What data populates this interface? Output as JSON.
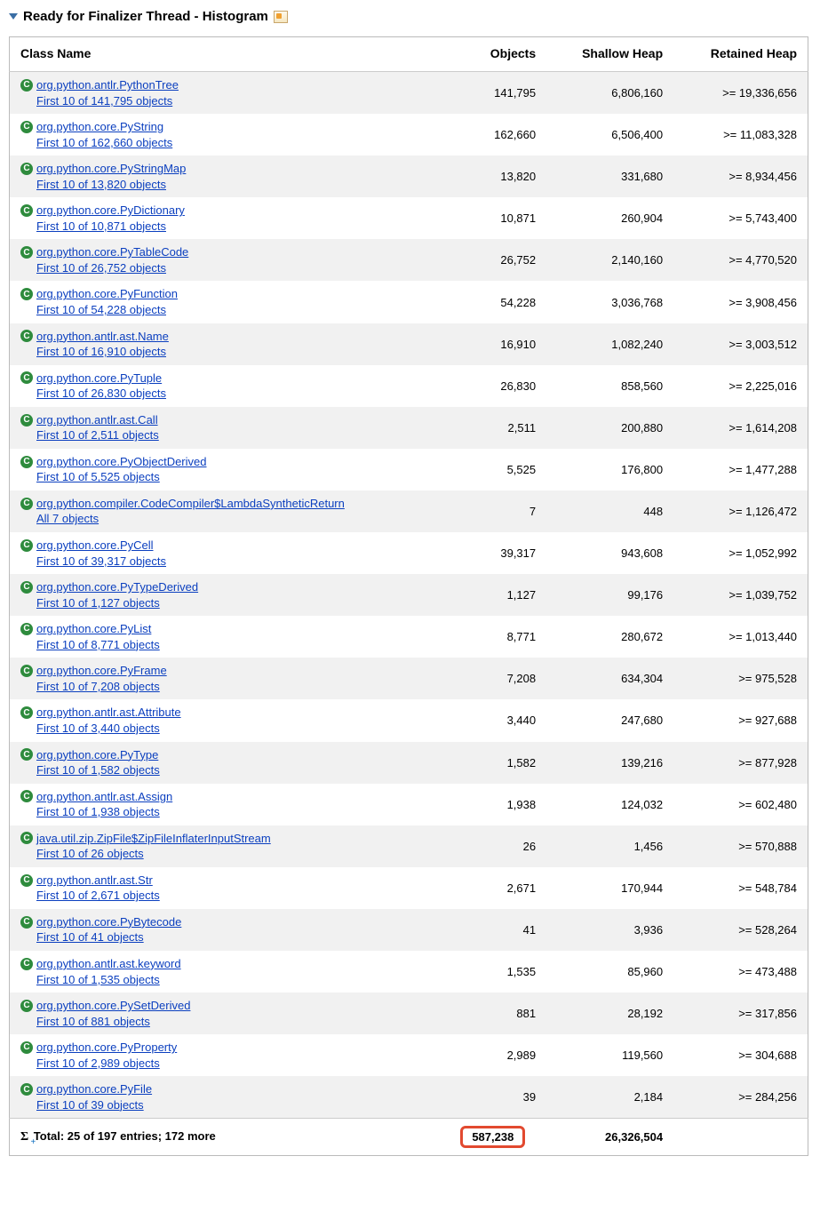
{
  "header": {
    "title": "Ready for Finalizer Thread - Histogram"
  },
  "columns": {
    "class": "Class Name",
    "objects": "Objects",
    "shallow": "Shallow Heap",
    "retained": "Retained Heap"
  },
  "icon_letter": "C",
  "rows": [
    {
      "class": "org.python.antlr.PythonTree",
      "sub": "First 10 of 141,795 objects",
      "objects": "141,795",
      "shallow": "6,806,160",
      "retained": ">= 19,336,656"
    },
    {
      "class": "org.python.core.PyString",
      "sub": "First 10 of 162,660 objects",
      "objects": "162,660",
      "shallow": "6,506,400",
      "retained": ">= 11,083,328"
    },
    {
      "class": "org.python.core.PyStringMap",
      "sub": "First 10 of 13,820 objects",
      "objects": "13,820",
      "shallow": "331,680",
      "retained": ">= 8,934,456"
    },
    {
      "class": "org.python.core.PyDictionary",
      "sub": "First 10 of 10,871 objects",
      "objects": "10,871",
      "shallow": "260,904",
      "retained": ">= 5,743,400"
    },
    {
      "class": "org.python.core.PyTableCode",
      "sub": "First 10 of 26,752 objects",
      "objects": "26,752",
      "shallow": "2,140,160",
      "retained": ">= 4,770,520"
    },
    {
      "class": "org.python.core.PyFunction",
      "sub": "First 10 of 54,228 objects",
      "objects": "54,228",
      "shallow": "3,036,768",
      "retained": ">= 3,908,456"
    },
    {
      "class": "org.python.antlr.ast.Name",
      "sub": "First 10 of 16,910 objects",
      "objects": "16,910",
      "shallow": "1,082,240",
      "retained": ">= 3,003,512"
    },
    {
      "class": "org.python.core.PyTuple",
      "sub": "First 10 of 26,830 objects",
      "objects": "26,830",
      "shallow": "858,560",
      "retained": ">= 2,225,016"
    },
    {
      "class": "org.python.antlr.ast.Call",
      "sub": "First 10 of 2,511 objects",
      "objects": "2,511",
      "shallow": "200,880",
      "retained": ">= 1,614,208"
    },
    {
      "class": "org.python.core.PyObjectDerived",
      "sub": "First 10 of 5,525 objects",
      "objects": "5,525",
      "shallow": "176,800",
      "retained": ">= 1,477,288"
    },
    {
      "class": "org.python.compiler.CodeCompiler$LambdaSyntheticReturn",
      "sub": "All 7 objects",
      "objects": "7",
      "shallow": "448",
      "retained": ">= 1,126,472"
    },
    {
      "class": "org.python.core.PyCell",
      "sub": "First 10 of 39,317 objects",
      "objects": "39,317",
      "shallow": "943,608",
      "retained": ">= 1,052,992"
    },
    {
      "class": "org.python.core.PyTypeDerived",
      "sub": "First 10 of 1,127 objects",
      "objects": "1,127",
      "shallow": "99,176",
      "retained": ">= 1,039,752"
    },
    {
      "class": "org.python.core.PyList",
      "sub": "First 10 of 8,771 objects",
      "objects": "8,771",
      "shallow": "280,672",
      "retained": ">= 1,013,440"
    },
    {
      "class": "org.python.core.PyFrame",
      "sub": "First 10 of 7,208 objects",
      "objects": "7,208",
      "shallow": "634,304",
      "retained": ">= 975,528"
    },
    {
      "class": "org.python.antlr.ast.Attribute",
      "sub": "First 10 of 3,440 objects",
      "objects": "3,440",
      "shallow": "247,680",
      "retained": ">= 927,688"
    },
    {
      "class": "org.python.core.PyType",
      "sub": "First 10 of 1,582 objects",
      "objects": "1,582",
      "shallow": "139,216",
      "retained": ">= 877,928"
    },
    {
      "class": "org.python.antlr.ast.Assign",
      "sub": "First 10 of 1,938 objects",
      "objects": "1,938",
      "shallow": "124,032",
      "retained": ">= 602,480"
    },
    {
      "class": "java.util.zip.ZipFile$ZipFileInflaterInputStream",
      "sub": "First 10 of 26 objects",
      "objects": "26",
      "shallow": "1,456",
      "retained": ">= 570,888"
    },
    {
      "class": "org.python.antlr.ast.Str",
      "sub": "First 10 of 2,671 objects",
      "objects": "2,671",
      "shallow": "170,944",
      "retained": ">= 548,784"
    },
    {
      "class": "org.python.core.PyBytecode",
      "sub": "First 10 of 41 objects",
      "objects": "41",
      "shallow": "3,936",
      "retained": ">= 528,264"
    },
    {
      "class": "org.python.antlr.ast.keyword",
      "sub": "First 10 of 1,535 objects",
      "objects": "1,535",
      "shallow": "85,960",
      "retained": ">= 473,488"
    },
    {
      "class": "org.python.core.PySetDerived",
      "sub": "First 10 of 881 objects",
      "objects": "881",
      "shallow": "28,192",
      "retained": ">= 317,856"
    },
    {
      "class": "org.python.core.PyProperty",
      "sub": "First 10 of 2,989 objects",
      "objects": "2,989",
      "shallow": "119,560",
      "retained": ">= 304,688"
    },
    {
      "class": "org.python.core.PyFile",
      "sub": "First 10 of 39 objects",
      "objects": "39",
      "shallow": "2,184",
      "retained": ">= 284,256"
    }
  ],
  "total": {
    "label": "Total: 25 of 197 entries; 172 more",
    "objects": "587,238",
    "shallow": "26,326,504",
    "retained": ""
  },
  "style": {
    "link_color": "#0b3fbf",
    "odd_row_bg": "#f1f1f1",
    "even_row_bg": "#ffffff",
    "border_color": "#bbbbbb",
    "icon_bg": "#2e8b3d",
    "highlight_border": "#e2492f"
  }
}
